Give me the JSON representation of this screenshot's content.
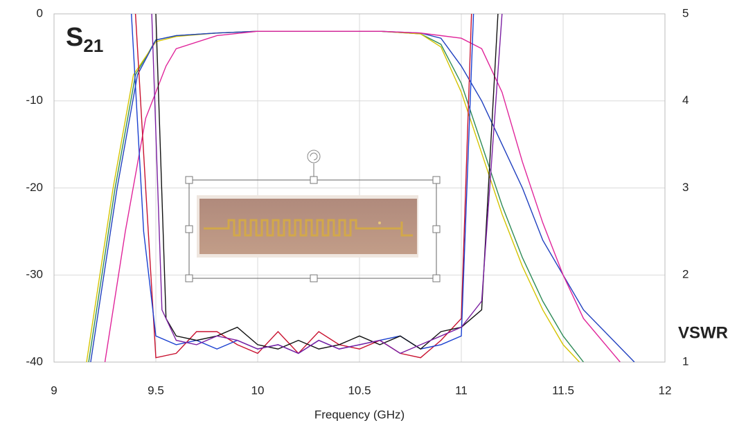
{
  "chart_data": {
    "type": "line",
    "x_label": "Frequency (GHz)",
    "annotation": "S",
    "annotation_subscript": "21",
    "y2_label": "VSWR",
    "xlim": [
      9,
      12
    ],
    "xticks": [
      9,
      9.5,
      10,
      10.5,
      11,
      11.5,
      12
    ],
    "ylim": [
      -40,
      0
    ],
    "yticks": [
      -40,
      -30,
      -20,
      -10,
      0
    ],
    "y2lim": [
      1,
      5
    ],
    "y2ticks": [
      1,
      2,
      3,
      4,
      5
    ],
    "grid": true,
    "series": [
      {
        "color": "#2e8b57",
        "x": [
          9.17,
          9.3,
          9.4,
          9.5,
          9.6,
          9.8,
          10.0,
          10.2,
          10.4,
          10.6,
          10.8,
          10.9,
          11.0,
          11.1,
          11.2,
          11.3,
          11.4,
          11.5,
          11.6
        ],
        "values": [
          -40,
          -20,
          -7,
          -3,
          -2.5,
          -2.2,
          -2,
          -2,
          -2,
          -2,
          -2.3,
          -3.5,
          -8,
          -15,
          -22,
          -28,
          -33,
          -37,
          -40
        ]
      },
      {
        "color": "#d4c400",
        "x": [
          9.16,
          9.29,
          9.39,
          9.5,
          9.6,
          9.8,
          10.0,
          10.2,
          10.4,
          10.6,
          10.8,
          10.9,
          11.0,
          11.1,
          11.2,
          11.3,
          11.4,
          11.5,
          11.58
        ],
        "values": [
          -40,
          -20,
          -7,
          -3.2,
          -2.6,
          -2.2,
          -2,
          -2,
          -2,
          -2,
          -2.3,
          -3.8,
          -9,
          -16,
          -23,
          -29,
          -34,
          -38,
          -40
        ]
      },
      {
        "color": "#1f3fbf",
        "x": [
          9.18,
          9.31,
          9.41,
          9.5,
          9.6,
          9.8,
          10.0,
          10.2,
          10.4,
          10.6,
          10.8,
          10.9,
          11.0,
          11.1,
          11.2,
          11.3,
          11.4,
          11.6,
          11.85
        ],
        "values": [
          -40,
          -20,
          -7,
          -3,
          -2.5,
          -2.2,
          -2,
          -2,
          -2,
          -2,
          -2.2,
          -2.8,
          -6,
          -10,
          -15,
          -20,
          -26,
          -34,
          -40
        ]
      },
      {
        "color": "#e0249a",
        "x": [
          9.25,
          9.35,
          9.45,
          9.55,
          9.6,
          9.8,
          10.0,
          10.2,
          10.4,
          10.6,
          10.8,
          11.0,
          11.1,
          11.2,
          11.3,
          11.4,
          11.5,
          11.6,
          11.78
        ],
        "values": [
          -40,
          -25,
          -12,
          -6,
          -4,
          -2.5,
          -2,
          -2,
          -2,
          -2,
          -2.2,
          -2.8,
          -4,
          -9,
          -17,
          -24,
          -30,
          -35,
          -40
        ]
      },
      {
        "color": "#c8102e",
        "axis": "y2",
        "x": [
          9.4,
          9.45,
          9.5,
          9.6,
          9.7,
          9.8,
          9.9,
          10.0,
          10.1,
          10.2,
          10.3,
          10.4,
          10.5,
          10.6,
          10.7,
          10.8,
          10.9,
          11.0,
          11.05
        ],
        "values": [
          5,
          3,
          1.05,
          1.1,
          1.35,
          1.35,
          1.2,
          1.1,
          1.35,
          1.1,
          1.35,
          1.2,
          1.15,
          1.25,
          1.1,
          1.05,
          1.25,
          1.5,
          5
        ]
      },
      {
        "color": "#1a40d0",
        "axis": "y2",
        "x": [
          9.38,
          9.44,
          9.5,
          9.6,
          9.7,
          9.8,
          9.9,
          10.0,
          10.1,
          10.2,
          10.3,
          10.4,
          10.5,
          10.6,
          10.7,
          10.8,
          10.9,
          11.0,
          11.06
        ],
        "values": [
          5,
          2.5,
          1.3,
          1.2,
          1.25,
          1.15,
          1.25,
          1.15,
          1.2,
          1.1,
          1.25,
          1.15,
          1.2,
          1.25,
          1.3,
          1.15,
          1.2,
          1.3,
          5
        ]
      },
      {
        "color": "#111111",
        "axis": "y2",
        "x": [
          9.5,
          9.55,
          9.6,
          9.7,
          9.8,
          9.9,
          10.0,
          10.1,
          10.2,
          10.3,
          10.4,
          10.5,
          10.6,
          10.7,
          10.8,
          10.9,
          11.0,
          11.1,
          11.18
        ],
        "values": [
          5,
          1.5,
          1.3,
          1.25,
          1.3,
          1.4,
          1.2,
          1.15,
          1.25,
          1.15,
          1.2,
          1.3,
          1.2,
          1.3,
          1.15,
          1.35,
          1.4,
          1.6,
          5
        ]
      },
      {
        "color": "#7b1fa2",
        "axis": "y2",
        "x": [
          9.48,
          9.53,
          9.6,
          9.7,
          9.8,
          9.9,
          10.0,
          10.1,
          10.2,
          10.3,
          10.4,
          10.5,
          10.6,
          10.7,
          10.8,
          10.9,
          11.0,
          11.1,
          11.2
        ],
        "values": [
          5,
          1.6,
          1.25,
          1.2,
          1.3,
          1.25,
          1.15,
          1.2,
          1.1,
          1.25,
          1.15,
          1.2,
          1.25,
          1.1,
          1.2,
          1.3,
          1.4,
          1.7,
          5
        ]
      }
    ]
  }
}
